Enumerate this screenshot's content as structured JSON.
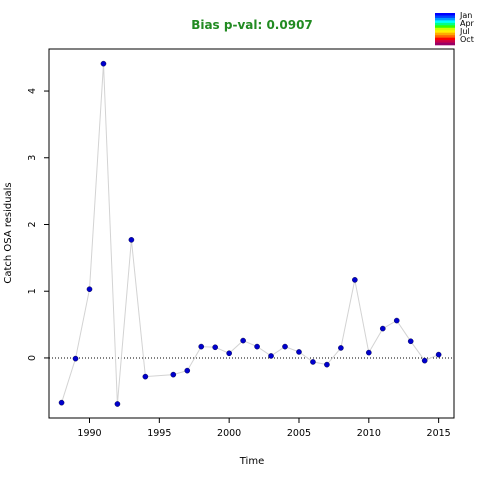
{
  "chart_data": {
    "type": "scatter",
    "title": "Bias p-val: 0.0907",
    "title_color": "#228b22",
    "xlabel": "Time",
    "ylabel": "Catch OSA residuals",
    "xlim": [
      1987.1,
      2016.1
    ],
    "ylim": [
      -0.9,
      4.63
    ],
    "x_ticks": [
      1990,
      1995,
      2000,
      2005,
      2010,
      2015
    ],
    "y_ticks": [
      0,
      1,
      2,
      3,
      4
    ],
    "reference_line": 0,
    "point_color": "#0000cd",
    "line_color": "#d3d3d3",
    "series": [
      {
        "x": [
          1988,
          1989,
          1990,
          1991,
          1992,
          1993,
          1994,
          1996,
          1997,
          1998,
          1999,
          2000,
          2001,
          2002,
          2003,
          2004,
          2005,
          2006,
          2007,
          2008,
          2009,
          2010,
          2011,
          2012,
          2013,
          2014,
          2015
        ],
        "y": [
          -0.67,
          -0.01,
          1.03,
          4.41,
          -0.69,
          1.77,
          -0.28,
          -0.25,
          -0.19,
          0.17,
          0.16,
          0.07,
          0.26,
          0.17,
          0.03,
          0.17,
          0.09,
          -0.06,
          -0.1,
          0.15,
          1.17,
          0.08,
          0.44,
          0.56,
          0.25,
          -0.04,
          0.05
        ]
      }
    ],
    "legend": {
      "position": "top-right",
      "entries": [
        "Jan",
        "Apr",
        "Jul",
        "Oct"
      ],
      "gradient_colors": [
        "#0000ff",
        "#0044ff",
        "#0099ff",
        "#00ffff",
        "#00ff88",
        "#33ff00",
        "#ccff00",
        "#ffee00",
        "#ffaa00",
        "#ff6600",
        "#ff0000",
        "#cc0044",
        "#990066"
      ]
    }
  }
}
